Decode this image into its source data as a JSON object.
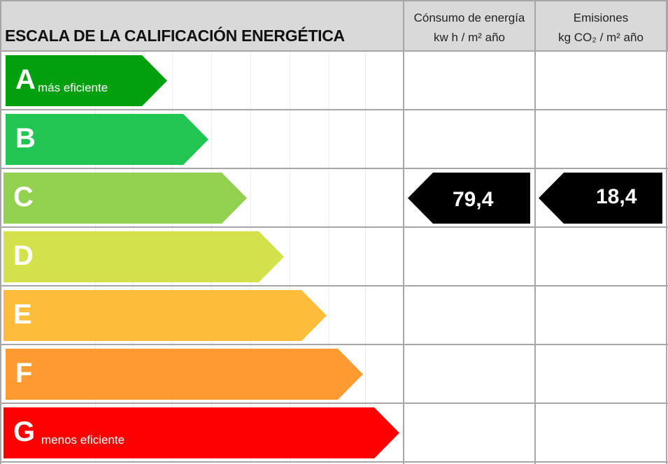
{
  "header": {
    "title": "ESCALA DE LA CALIFICACIÓN ENERGÉTICA",
    "consumo_line1": "Cónsumo de energía",
    "consumo_line2": "kw h / m² año",
    "emisiones_line1": "Emisiones",
    "emisiones_line2": "kg CO₂ / m² año"
  },
  "ratings": [
    {
      "letter": "A",
      "label": "más eficiente",
      "color": "#00a00e"
    },
    {
      "letter": "B",
      "label": "",
      "color": "#20c552"
    },
    {
      "letter": "C",
      "label": "",
      "color": "#92d050"
    },
    {
      "letter": "D",
      "label": "",
      "color": "#d3e24a"
    },
    {
      "letter": "E",
      "label": "",
      "color": "#fcbd3a"
    },
    {
      "letter": "F",
      "label": "",
      "color": "#fd9a32"
    },
    {
      "letter": "G",
      "label": "menos eficiente",
      "color": "#ff0000"
    }
  ],
  "result": {
    "rating": "C",
    "consumo": "79,4",
    "emisiones": "18,4"
  }
}
